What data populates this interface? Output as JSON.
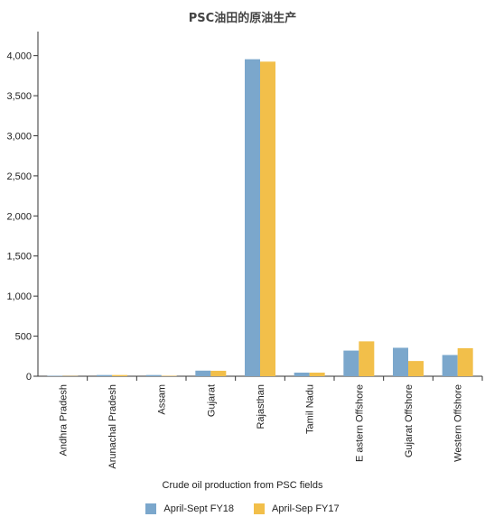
{
  "chart_data": {
    "type": "bar",
    "title": "PSC油田的原油生产",
    "xlabel": "Crude oil production from PSC fields",
    "ylabel": "",
    "ylim": [
      0,
      4300
    ],
    "yticks": [
      0,
      500,
      1000,
      1500,
      2000,
      2500,
      3000,
      3500,
      4000
    ],
    "ytick_labels": [
      "0",
      "500",
      "1,000",
      "1,500",
      "2,000",
      "2,500",
      "3,000",
      "3,500",
      "4,000"
    ],
    "grid": false,
    "legend_position": "bottom",
    "categories": [
      "Andhra Pradesh",
      "Arunachal Pradesh",
      "Assam",
      "Gujarat",
      "Rajasthan",
      "Tamil Nadu",
      "E astern Offshore",
      "Gujarat Offshore",
      "Western Offshore"
    ],
    "series": [
      {
        "name": "April-Sept FY18",
        "color": "#7ba7cc",
        "values": [
          5,
          15,
          15,
          70,
          3955,
          45,
          320,
          355,
          265
        ]
      },
      {
        "name": "April-Sep FY17",
        "color": "#f2bf4a",
        "values": [
          3,
          15,
          5,
          68,
          3925,
          45,
          435,
          190,
          350
        ]
      }
    ]
  }
}
